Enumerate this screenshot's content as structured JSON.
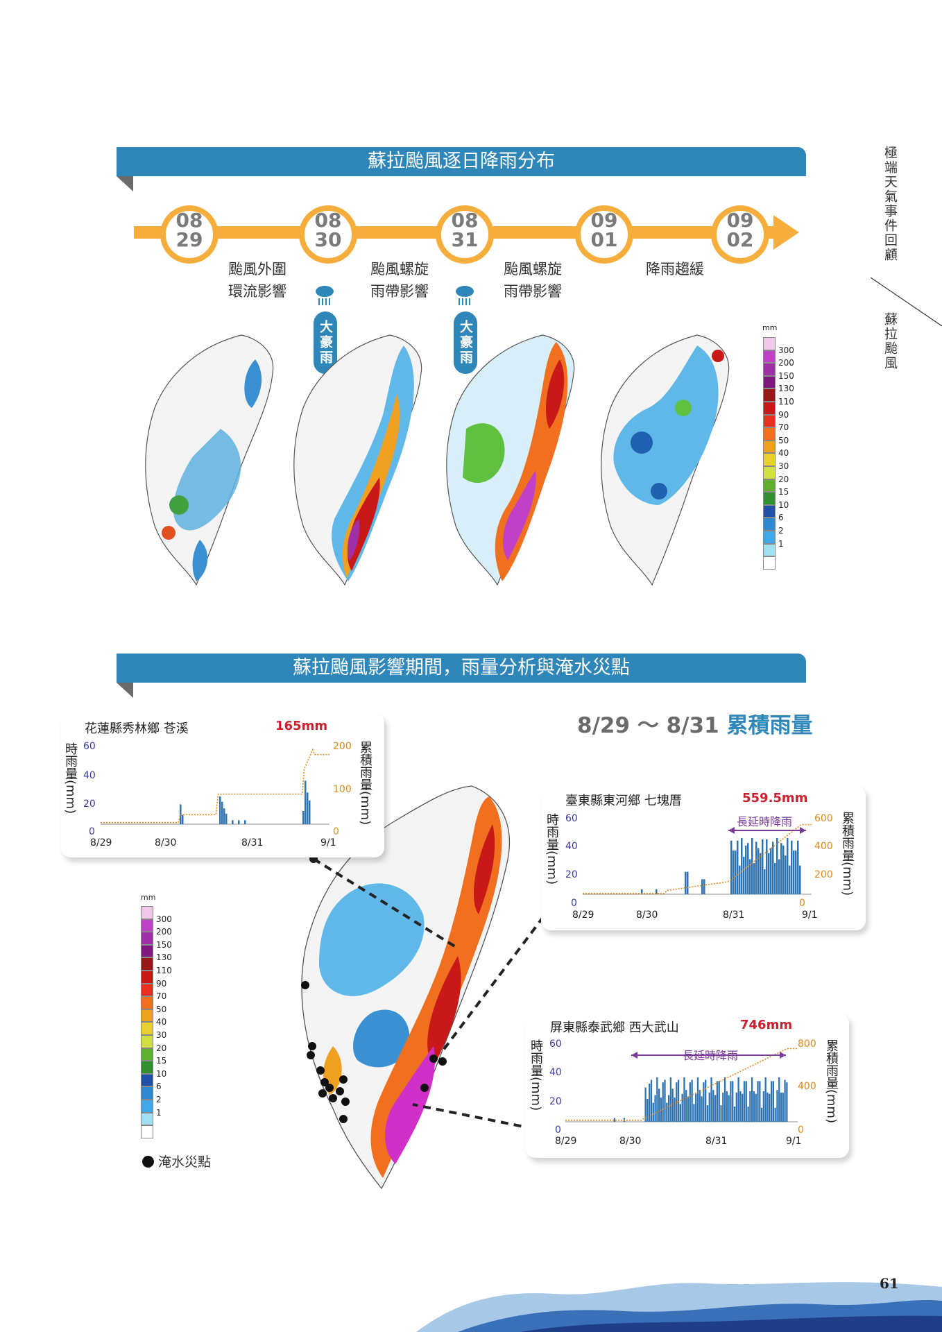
{
  "sidebar": {
    "section": "極端天氣事件回顧",
    "topic": "蘇拉颱風"
  },
  "section1": {
    "title": "蘇拉颱風逐日降雨分布",
    "dates": [
      {
        "top": "08",
        "bottom": "29"
      },
      {
        "top": "08",
        "bottom": "30"
      },
      {
        "top": "08",
        "bottom": "31"
      },
      {
        "top": "09",
        "bottom": "01"
      },
      {
        "top": "09",
        "bottom": "02"
      }
    ],
    "phases": [
      {
        "line1": "颱風外圍",
        "line2": "環流影響"
      },
      {
        "line1": "颱風螺旋",
        "line2": "雨帶影響"
      },
      {
        "line1": "颱風螺旋",
        "line2": "雨帶影響"
      },
      {
        "line1": "降雨趨緩",
        "line2": ""
      }
    ],
    "heavy_rain_label": "大豪雨"
  },
  "legend": {
    "unit": "mm",
    "levels": [
      "300",
      "200",
      "150",
      "130",
      "110",
      "90",
      "70",
      "50",
      "40",
      "30",
      "20",
      "15",
      "10",
      "6",
      "2",
      "1"
    ],
    "colors": [
      "#f0c8e8",
      "#c040c8",
      "#a030a8",
      "#801880",
      "#981818",
      "#c81818",
      "#e83020",
      "#f07020",
      "#f0a020",
      "#e8d030",
      "#d0e040",
      "#60b030",
      "#309030",
      "#2050a8",
      "#3088d0",
      "#40a8e8",
      "#a0e0f0",
      "#ffffff"
    ]
  },
  "section2": {
    "title": "蘇拉颱風影響期間，雨量分析與淹水災點",
    "cumulative_label": "8/29 ～ 8/31",
    "cumulative_suffix": "累積雨量",
    "flood_label": "淹水災點"
  },
  "stations": [
    {
      "title": "花蓮縣秀林鄉 苍溪",
      "total": "165mm",
      "left_ticks": [
        "60",
        "40",
        "20",
        "0"
      ],
      "right_ticks": [
        "200",
        "100",
        "0"
      ],
      "x_ticks": [
        "8/29",
        "8/30",
        "8/31",
        "9/1"
      ],
      "long_rain": ""
    },
    {
      "title": "臺東縣東河鄉 七塊厝",
      "total": "559.5mm",
      "left_ticks": [
        "60",
        "40",
        "20",
        "0"
      ],
      "right_ticks": [
        "600",
        "400",
        "200",
        "0"
      ],
      "x_ticks": [
        "8/29",
        "8/30",
        "8/31",
        "9/1"
      ],
      "long_rain": "長延時降雨"
    },
    {
      "title": "屏東縣泰武鄉 西大武山",
      "total": "746mm",
      "left_ticks": [
        "60",
        "40",
        "20",
        "0"
      ],
      "right_ticks": [
        "800",
        "400",
        "0"
      ],
      "x_ticks": [
        "8/29",
        "8/30",
        "8/31",
        "9/1"
      ],
      "long_rain": "長延時降雨"
    }
  ],
  "axis_labels": {
    "left": "時雨量(mm)",
    "right": "累積雨量(mm)"
  },
  "page_number": "61"
}
